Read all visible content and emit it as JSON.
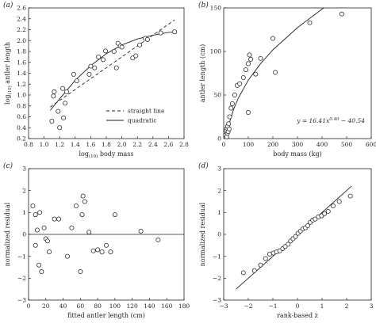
{
  "chart_data": [
    {
      "type": "scatter",
      "panel_label": "(a)",
      "xlabel": "log(10) body mass",
      "ylabel": "log(10) antler length",
      "xlim": [
        0.8,
        2.8
      ],
      "ylim": [
        0.2,
        2.6
      ],
      "xticks": [
        0.8,
        1.0,
        1.2,
        1.4,
        1.6,
        1.8,
        2.0,
        2.2,
        2.4,
        2.6,
        2.8
      ],
      "yticks": [
        0.2,
        0.4,
        0.6,
        0.8,
        1.0,
        1.2,
        1.4,
        1.6,
        1.8,
        2.0,
        2.2,
        2.4,
        2.6
      ],
      "grid": false,
      "legend_position": "bottom-right",
      "legend": [
        "straight line",
        "quadratic"
      ],
      "points": {
        "x": [
          1.1,
          1.12,
          1.13,
          1.18,
          1.2,
          1.24,
          1.25,
          1.27,
          1.29,
          1.38,
          1.42,
          1.58,
          1.6,
          1.65,
          1.7,
          1.76,
          1.79,
          1.9,
          1.93,
          1.95,
          1.98,
          2.0,
          2.14,
          2.18,
          2.23,
          2.3,
          2.33,
          2.5,
          2.68
        ],
        "y": [
          0.52,
          0.98,
          1.06,
          0.7,
          0.4,
          1.12,
          0.58,
          0.85,
          1.06,
          1.38,
          1.26,
          1.38,
          1.53,
          1.5,
          1.7,
          1.65,
          1.81,
          1.8,
          1.5,
          1.95,
          1.9,
          1.88,
          1.68,
          1.72,
          1.92,
          2.04,
          2.02,
          2.14,
          2.16
        ]
      },
      "series": [
        {
          "name": "straight line",
          "style": "dashed",
          "x": [
            1.08,
            2.68
          ],
          "y": [
            0.78,
            2.38
          ]
        },
        {
          "name": "quadratic",
          "style": "solid",
          "x": [
            1.08,
            1.2,
            1.4,
            1.6,
            1.8,
            2.0,
            2.2,
            2.4,
            2.6,
            2.68
          ],
          "y": [
            0.72,
            0.93,
            1.27,
            1.54,
            1.76,
            1.92,
            2.03,
            2.1,
            2.15,
            2.16
          ]
        }
      ]
    },
    {
      "type": "scatter",
      "panel_label": "(b)",
      "xlabel": "body mass (kg)",
      "ylabel": "antler length (cm)",
      "xlim": [
        0,
        600
      ],
      "ylim": [
        0,
        150
      ],
      "xticks": [
        0,
        100,
        200,
        300,
        400,
        500,
        600
      ],
      "yticks": [
        0,
        50,
        100,
        150
      ],
      "grid": false,
      "annotation": "y = 16.41x^0.40 − 40.54",
      "points": {
        "x": [
          8,
          10,
          12,
          13,
          15,
          16,
          18,
          20,
          22,
          24,
          30,
          35,
          45,
          55,
          65,
          80,
          90,
          100,
          105,
          100,
          110,
          130,
          150,
          200,
          210,
          350,
          480
        ],
        "y": [
          4,
          9,
          2,
          12,
          6,
          14,
          8,
          17,
          11,
          25,
          35,
          40,
          50,
          61,
          63,
          70,
          79,
          86,
          96,
          30,
          91,
          74,
          92,
          115,
          76,
          133,
          143
        ]
      },
      "series": [
        {
          "name": "",
          "style": "solid",
          "x": [
            10,
            20,
            40,
            60,
            100,
            150,
            200,
            300,
            400,
            480
          ],
          "y": [
            0.8,
            14.9,
            33.5,
            46.8,
            67.1,
            86.1,
            101.8,
            127.4,
            148.6,
            163.3
          ]
        }
      ]
    },
    {
      "type": "scatter",
      "panel_label": "(c)",
      "xlabel": "fitted antler length (cm)",
      "ylabel": "normalized residual",
      "xlim": [
        0,
        180
      ],
      "ylim": [
        -3,
        3
      ],
      "xticks": [
        0,
        20,
        40,
        60,
        80,
        100,
        120,
        140,
        160,
        180
      ],
      "yticks": [
        -3,
        -2,
        -1,
        0,
        1,
        2,
        3
      ],
      "grid": false,
      "hline": 0,
      "points": {
        "x": [
          5,
          8,
          8,
          10,
          12,
          13,
          15,
          18,
          20,
          22,
          24,
          30,
          35,
          45,
          50,
          55,
          60,
          62,
          63,
          65,
          70,
          75,
          80,
          85,
          90,
          95,
          100,
          130,
          150
        ],
        "y": [
          1.3,
          0.9,
          -0.5,
          0.2,
          -1.4,
          1.0,
          -1.7,
          0.3,
          -0.2,
          -0.3,
          -0.8,
          0.7,
          0.7,
          -1.0,
          0.3,
          1.3,
          -1.7,
          0.9,
          1.75,
          1.5,
          0.1,
          -0.75,
          -0.7,
          -0.8,
          -0.5,
          -0.8,
          0.9,
          0.15,
          -0.25
        ]
      }
    },
    {
      "type": "scatter",
      "panel_label": "(d)",
      "xlabel": "rank-based z",
      "ylabel": "normalized residual",
      "xlim": [
        -3,
        3
      ],
      "ylim": [
        -3,
        3
      ],
      "xticks": [
        -3,
        -2,
        -1,
        0,
        1,
        2,
        3
      ],
      "yticks": [
        -3,
        -2,
        -1,
        0,
        1,
        2,
        3
      ],
      "grid": false,
      "points": {
        "x": [
          -2.2,
          -1.75,
          -1.5,
          -1.3,
          -1.13,
          -0.98,
          -0.85,
          -0.72,
          -0.6,
          -0.5,
          -0.38,
          -0.28,
          -0.18,
          -0.08,
          0.02,
          0.12,
          0.22,
          0.32,
          0.42,
          0.52,
          0.62,
          0.72,
          0.85,
          0.98,
          1.1,
          1.25,
          1.45,
          1.7,
          2.15
        ],
        "y": [
          -1.75,
          -1.65,
          -1.4,
          -1.1,
          -0.9,
          -0.85,
          -0.8,
          -0.75,
          -0.65,
          -0.55,
          -0.45,
          -0.3,
          -0.2,
          -0.1,
          0.05,
          0.15,
          0.25,
          0.3,
          0.4,
          0.55,
          0.65,
          0.7,
          0.8,
          0.85,
          0.95,
          1.05,
          1.3,
          1.5,
          1.75
        ]
      },
      "series": [
        {
          "name": "",
          "style": "solid",
          "x": [
            -2.5,
            2.2
          ],
          "y": [
            -2.5,
            2.2
          ]
        }
      ]
    }
  ]
}
